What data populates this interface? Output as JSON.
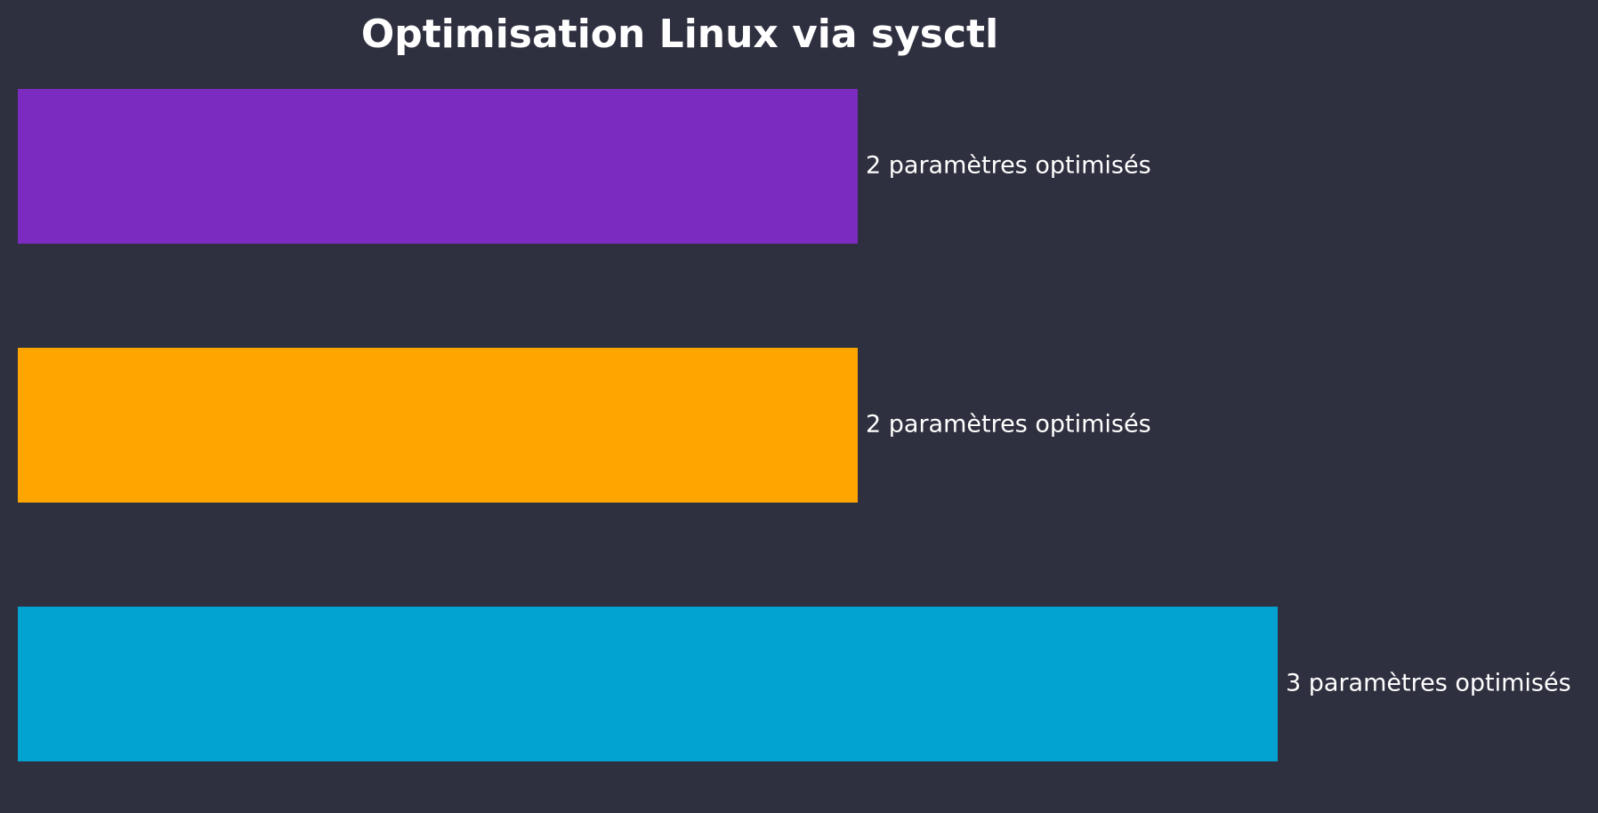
{
  "chart_data": {
    "type": "bar",
    "orientation": "horizontal",
    "title": "Optimisation Linux via sysctl",
    "xlabel": "",
    "ylabel": "",
    "values": [
      2,
      2,
      3
    ],
    "value_labels": [
      "2 paramètres optimisés",
      "2 paramètres optimisés",
      "3 paramètres optimisés"
    ],
    "colors": [
      "#7b2bbf",
      "#ffa500",
      "#02a3d1"
    ],
    "xlim": [
      0,
      3
    ],
    "grid": false,
    "axes_visible": false,
    "background": "#2e2f3f"
  }
}
